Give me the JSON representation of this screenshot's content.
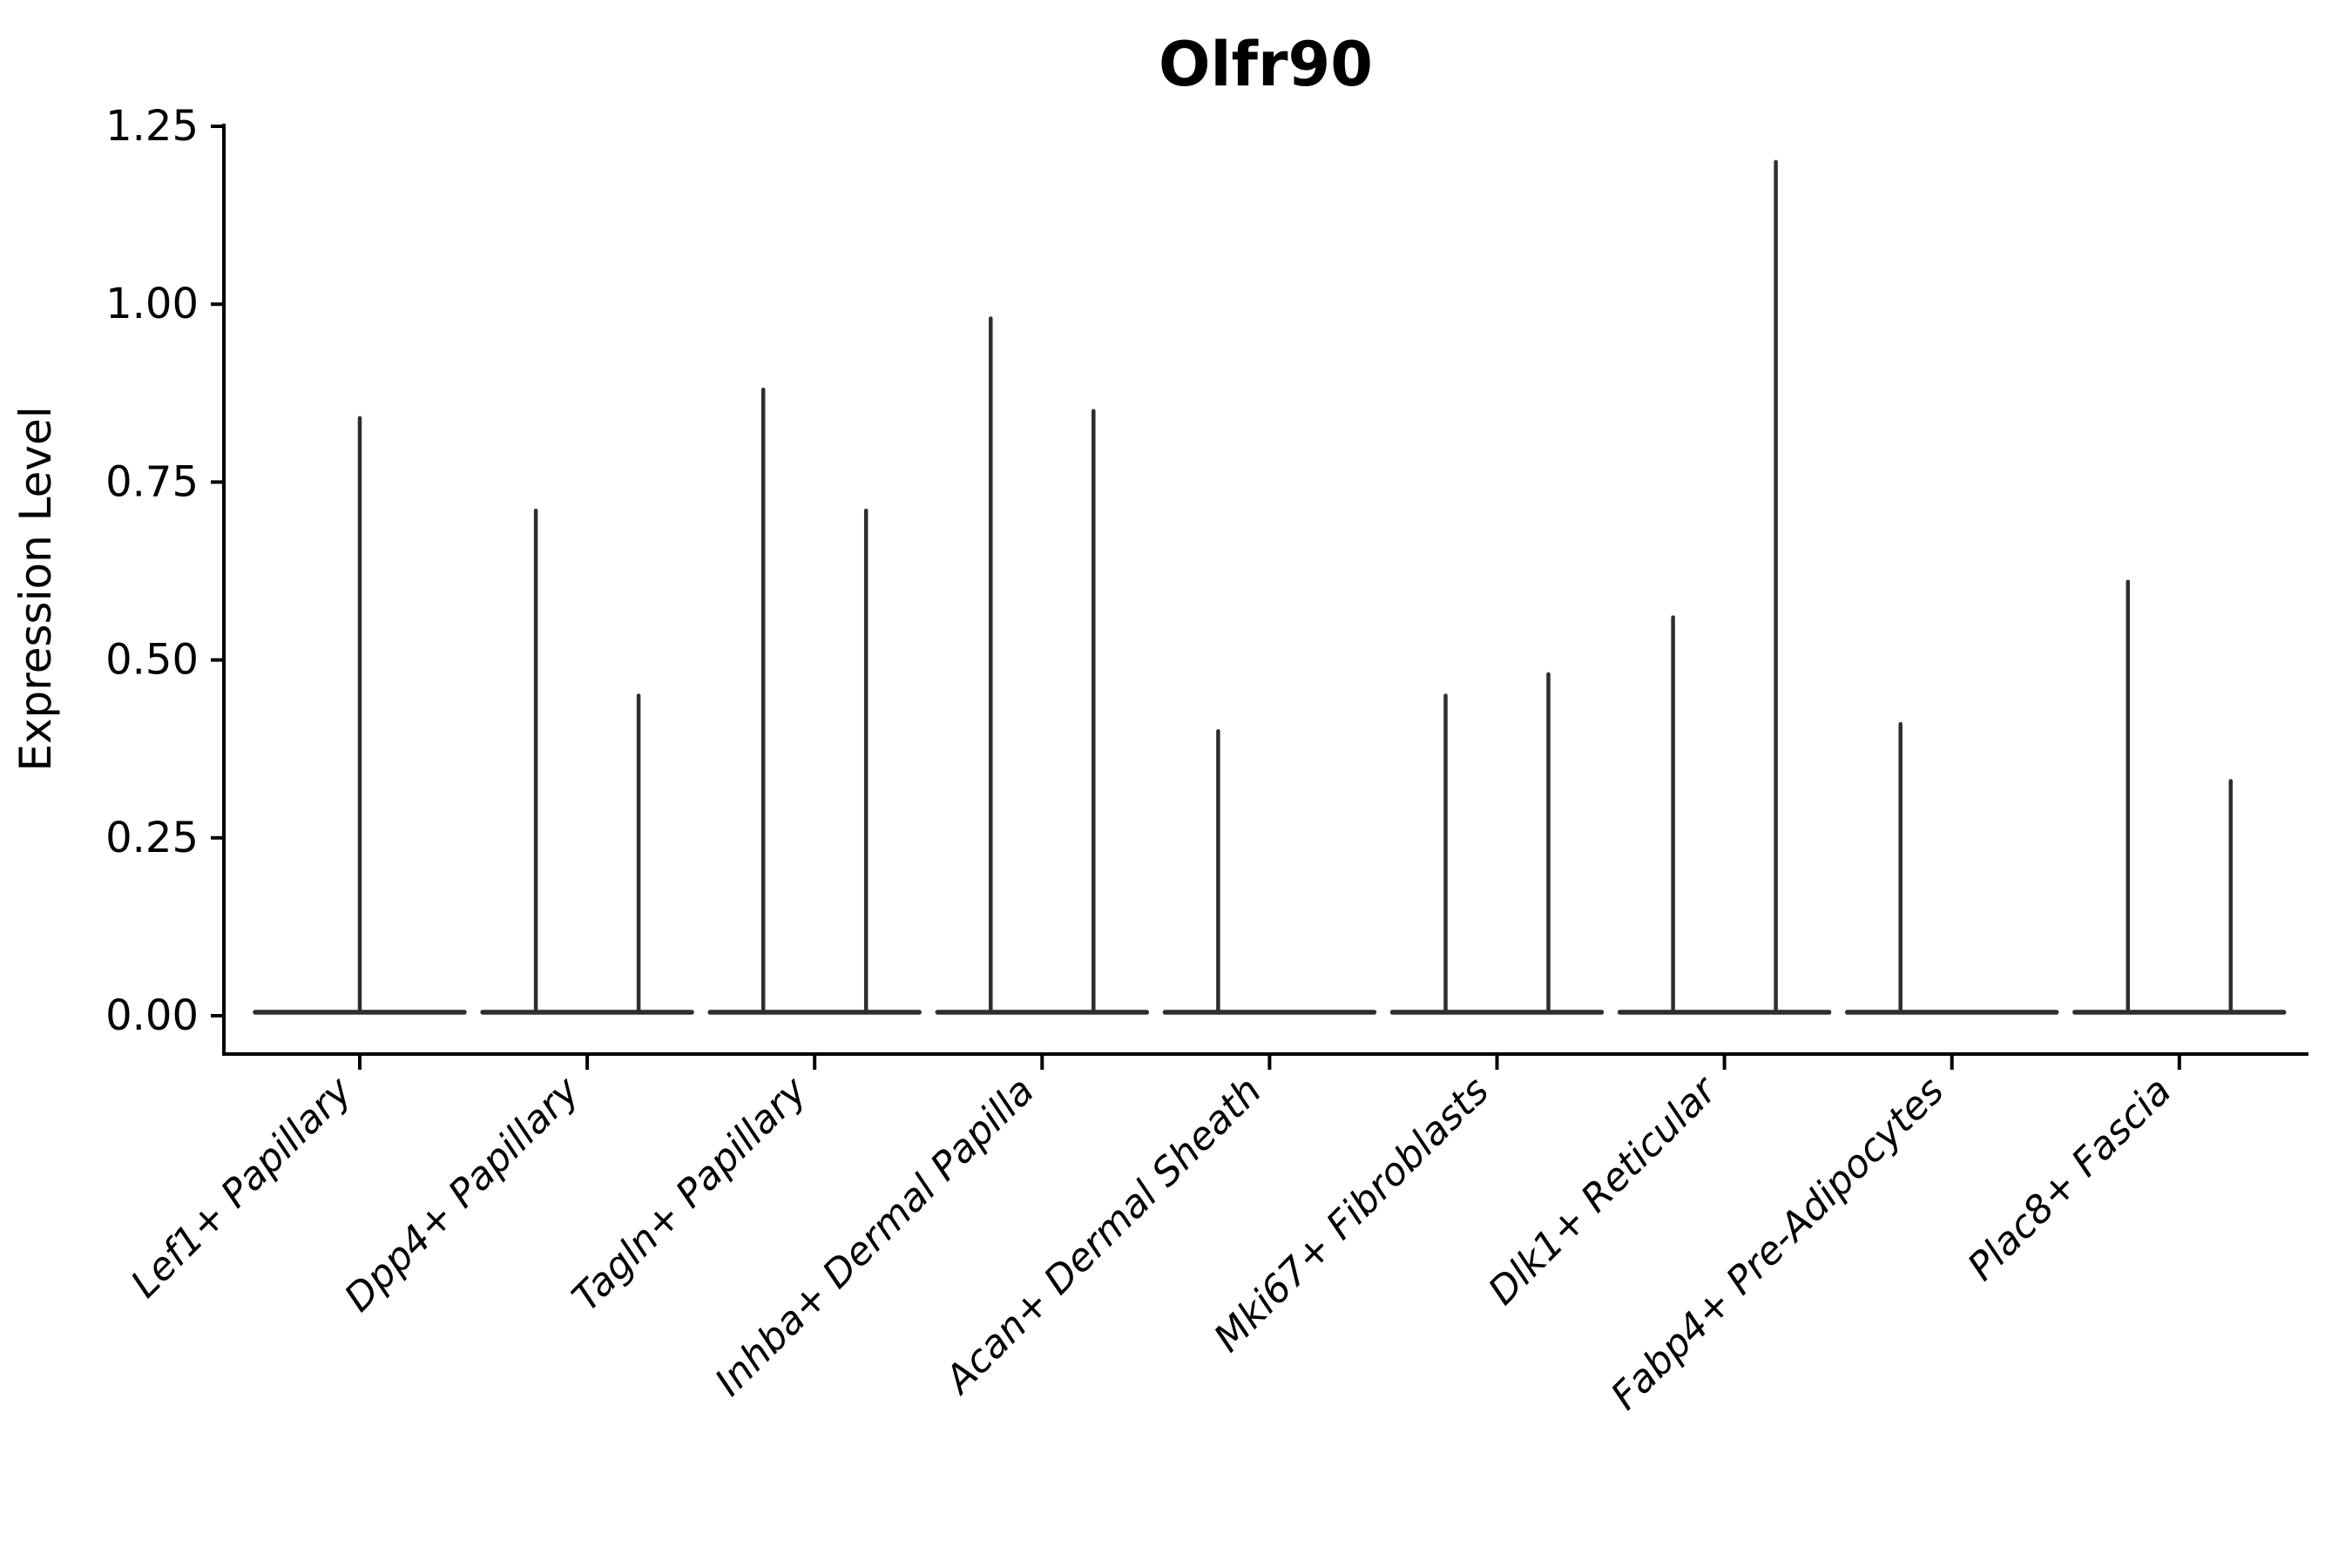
{
  "figure": {
    "title": "Olfr90",
    "ylabel": "Expression Level"
  },
  "chart_data": {
    "type": "violin",
    "title": "Olfr90",
    "xlabel": "",
    "ylabel": "Expression Level",
    "ylim": [
      -0.05,
      1.26
    ],
    "yticks": [
      0.0,
      0.25,
      0.5,
      0.75,
      1.0,
      1.25
    ],
    "ytick_labels": [
      "0.00",
      "0.25",
      "0.50",
      "0.75",
      "1.00",
      "1.25"
    ],
    "grid": false,
    "legend_position": "none",
    "categories": [
      "Lef1+ Papillary",
      "Dpp4+ Papillary",
      "Tagln+ Papillary",
      "Inhba+ Dermal Papilla",
      "Acan+ Dermal Sheath",
      "Mki67+ Fibroblasts",
      "Dlk1+ Reticular",
      "Fabp4+ Pre-Adipocytes",
      "Plac8+ Fascia"
    ],
    "violins": [
      {
        "cluster": "Lef1+ Papillary",
        "spikes": [
          {
            "position": "center",
            "max_expression": 0.84
          }
        ]
      },
      {
        "cluster": "Dpp4+ Papillary",
        "spikes": [
          {
            "position": "left",
            "max_expression": 0.71
          },
          {
            "position": "right",
            "max_expression": 0.45
          }
        ]
      },
      {
        "cluster": "Tagln+ Papillary",
        "spikes": [
          {
            "position": "left",
            "max_expression": 0.88
          },
          {
            "position": "right",
            "max_expression": 0.71
          }
        ]
      },
      {
        "cluster": "Inhba+ Dermal Papilla",
        "spikes": [
          {
            "position": "left",
            "max_expression": 0.98
          },
          {
            "position": "right",
            "max_expression": 0.85
          }
        ]
      },
      {
        "cluster": "Acan+ Dermal Sheath",
        "spikes": [
          {
            "position": "left",
            "max_expression": 0.4
          }
        ]
      },
      {
        "cluster": "Mki67+ Fibroblasts",
        "spikes": [
          {
            "position": "left",
            "max_expression": 0.45
          },
          {
            "position": "right",
            "max_expression": 0.48
          }
        ]
      },
      {
        "cluster": "Dlk1+ Reticular",
        "spikes": [
          {
            "position": "left",
            "max_expression": 0.56
          },
          {
            "position": "right",
            "max_expression": 1.2
          }
        ]
      },
      {
        "cluster": "Fabp4+ Pre-Adipocytes",
        "spikes": [
          {
            "position": "left",
            "max_expression": 0.41
          }
        ]
      },
      {
        "cluster": "Plac8+ Fascia",
        "spikes": [
          {
            "position": "left",
            "max_expression": 0.61
          },
          {
            "position": "right",
            "max_expression": 0.33
          }
        ]
      }
    ],
    "style": {
      "violin_line_color": "#2e2e2e",
      "axis_color": "#000000",
      "background": "#ffffff"
    }
  }
}
